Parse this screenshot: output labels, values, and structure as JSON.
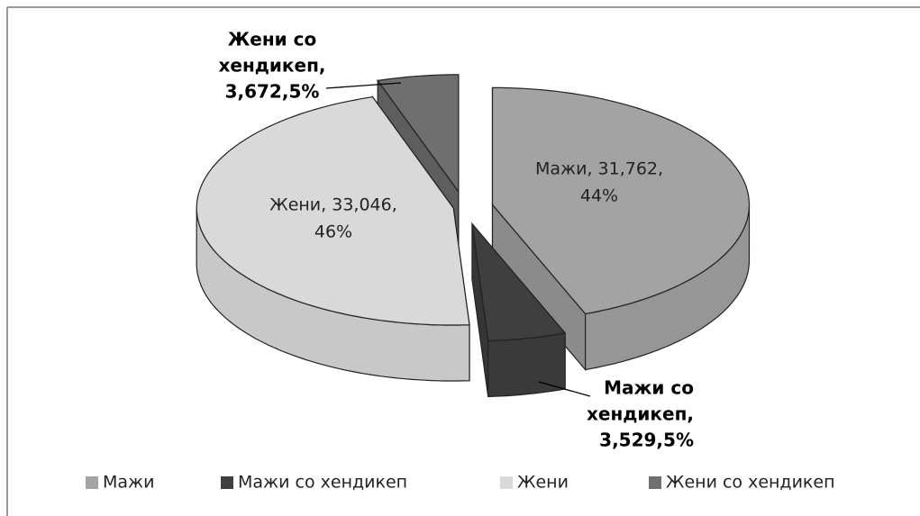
{
  "chart_data": {
    "type": "pie3d",
    "categories": [
      "Мажи",
      "Мажи со хендикеп",
      "Жени",
      "Жени со хендикеп"
    ],
    "values": [
      31762,
      3529,
      33046,
      3672
    ],
    "colors": [
      "#a3a3a3",
      "#3f3f3f",
      "#d9d9d9",
      "#6f6f6f"
    ],
    "data_labels": [
      [
        "Мажи, 31,762,",
        "44%"
      ],
      [
        "Мажи со",
        "хендикеп,",
        "3,529,5%"
      ],
      [
        "Жени, 33,046,",
        "46%"
      ],
      [
        "Жени со",
        "хендикеп,",
        "3,672,5%"
      ]
    ],
    "legend": "bottom"
  }
}
